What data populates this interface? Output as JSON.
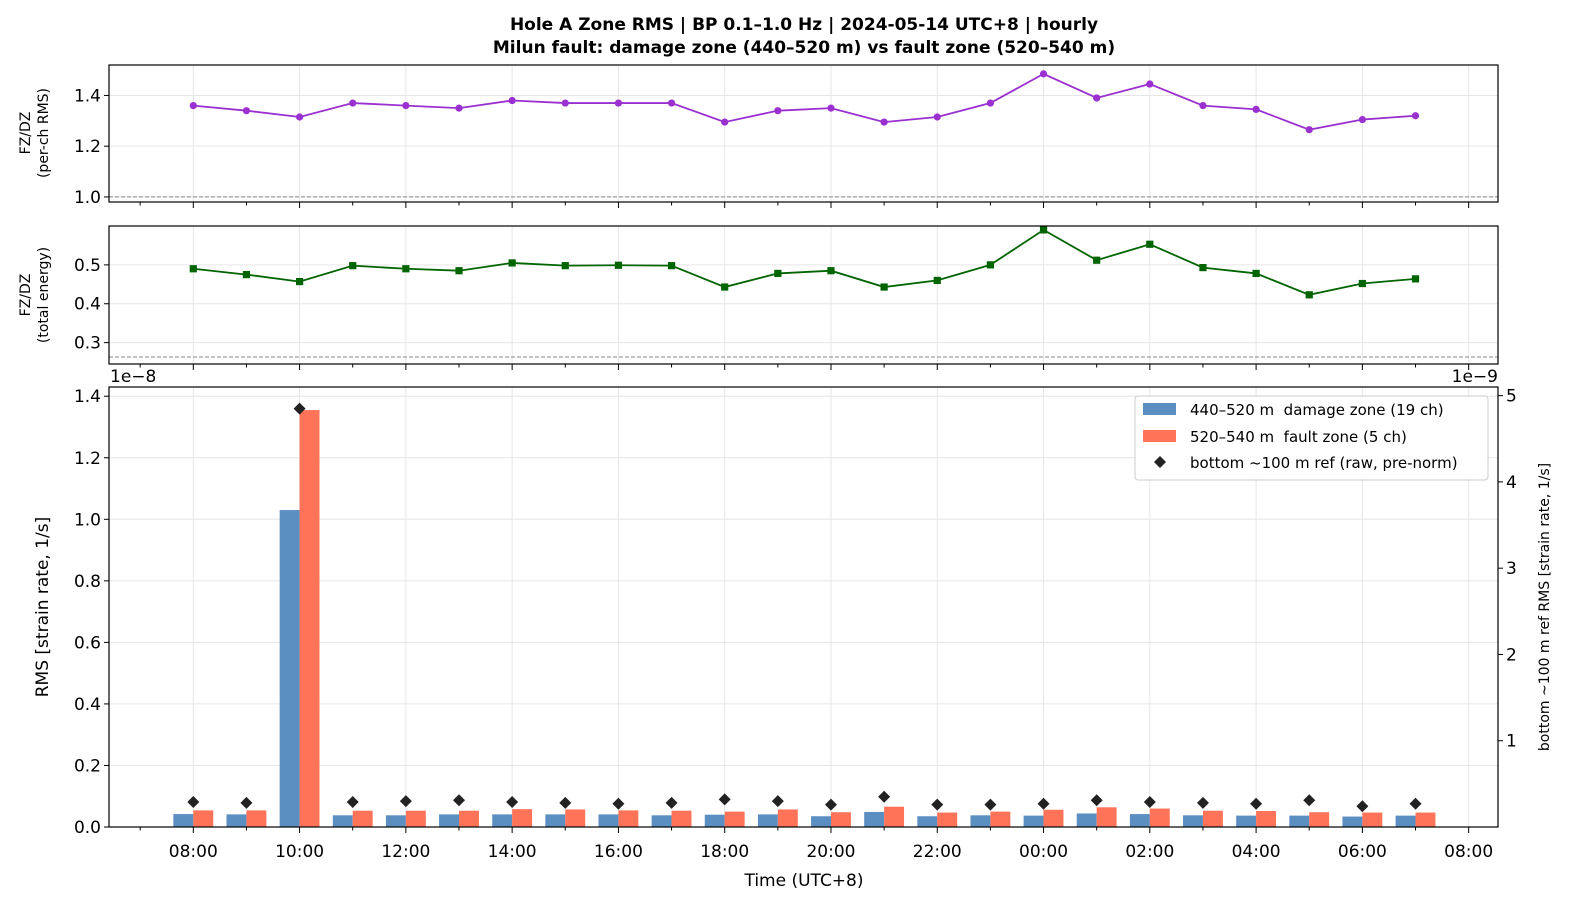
{
  "title_line1": "Hole A Zone RMS  |  BP 0.1–1.0 Hz  |  2024-05-14 UTC+8  |  hourly",
  "title_line2": "Milun fault: damage zone (440–520 m) vs fault zone (520–540 m)",
  "colors": {
    "ratio_rms": "#9b30d0",
    "ratio_energy": "#006400",
    "damage_zone": "#5b8fc2",
    "fault_zone": "#ff7358",
    "bottom_ref": "#222222",
    "refline": "#888888"
  },
  "chart_data": [
    {
      "type": "line",
      "panel": "top",
      "ylabel_line1": "FZ/DZ",
      "ylabel_line2": "(per-ch RMS)",
      "ylim": [
        0.98,
        1.52
      ],
      "yticks": [
        "1.0",
        "1.2",
        "1.4"
      ],
      "yticks_values": [
        1.0,
        1.2,
        1.4
      ],
      "reference_line": 1.0,
      "grid": true,
      "marker": "circle",
      "x_hours": [
        0,
        1,
        2,
        3,
        4,
        5,
        6,
        7,
        8,
        9,
        10,
        11,
        12,
        13,
        14,
        15,
        16,
        17,
        18,
        19,
        20,
        21,
        22,
        23
      ],
      "values": [
        1.36,
        1.34,
        1.315,
        1.37,
        1.36,
        1.35,
        1.38,
        1.37,
        1.37,
        1.37,
        1.295,
        1.34,
        1.35,
        1.295,
        1.315,
        1.37,
        1.485,
        1.39,
        1.445,
        1.36,
        1.345,
        1.265,
        1.305,
        1.32
      ]
    },
    {
      "type": "line",
      "panel": "middle",
      "ylabel_line1": "FZ/DZ",
      "ylabel_line2": "(total energy)",
      "ylim": [
        0.245,
        0.6
      ],
      "yticks": [
        "0.3",
        "0.4",
        "0.5"
      ],
      "yticks_values": [
        0.3,
        0.4,
        0.5
      ],
      "reference_line": 0.263,
      "grid": true,
      "marker": "square",
      "x_hours": [
        0,
        1,
        2,
        3,
        4,
        5,
        6,
        7,
        8,
        9,
        10,
        11,
        12,
        13,
        14,
        15,
        16,
        17,
        18,
        19,
        20,
        21,
        22,
        23
      ],
      "values": [
        0.49,
        0.475,
        0.457,
        0.498,
        0.49,
        0.485,
        0.505,
        0.498,
        0.499,
        0.498,
        0.443,
        0.478,
        0.485,
        0.443,
        0.46,
        0.5,
        0.59,
        0.512,
        0.553,
        0.493,
        0.478,
        0.423,
        0.452,
        0.464
      ]
    },
    {
      "type": "bar",
      "panel": "bottom",
      "ylabel": "RMS  [strain rate, 1/s]",
      "ylabel_right": "bottom ~100 m ref RMS  [strain rate, 1/s]",
      "xlabel": "Time (UTC+8)",
      "offset_left": "1e−8",
      "offset_right": "1e−9",
      "ylim": [
        0,
        1.43
      ],
      "yticks": [
        "0.0",
        "0.2",
        "0.4",
        "0.6",
        "0.8",
        "1.0",
        "1.2",
        "1.4"
      ],
      "yticks_values": [
        0,
        0.2,
        0.4,
        0.6,
        0.8,
        1.0,
        1.2,
        1.4
      ],
      "ylim_right": [
        0,
        5.1
      ],
      "yticks_right": [
        "1",
        "2",
        "3",
        "4",
        "5"
      ],
      "yticks_right_values": [
        1,
        2,
        3,
        4,
        5
      ],
      "xlim_hours": [
        -1.0,
        24.75
      ],
      "xticks_labels": [
        "08:00",
        "10:00",
        "12:00",
        "14:00",
        "16:00",
        "18:00",
        "20:00",
        "22:00",
        "00:00",
        "02:00",
        "04:00",
        "06:00",
        "08:00"
      ],
      "xticks_hours": [
        0,
        2,
        4,
        6,
        8,
        10,
        12,
        14,
        16,
        18,
        20,
        22,
        24
      ],
      "grid": true,
      "legend_position": "top-right",
      "categories_hours": [
        0,
        1,
        2,
        3,
        4,
        5,
        6,
        7,
        8,
        9,
        10,
        11,
        12,
        13,
        14,
        15,
        16,
        17,
        18,
        19,
        20,
        21,
        22,
        23
      ],
      "series": [
        {
          "name": "440–520 m  damage zone (19 ch)",
          "axis": "left",
          "values": [
            0.042,
            0.041,
            1.03,
            0.038,
            0.038,
            0.041,
            0.041,
            0.041,
            0.041,
            0.038,
            0.04,
            0.041,
            0.035,
            0.049,
            0.035,
            0.038,
            0.037,
            0.044,
            0.042,
            0.038,
            0.037,
            0.037,
            0.034,
            0.037
          ]
        },
        {
          "name": "520–540 m  fault zone (5 ch)",
          "axis": "left",
          "values": [
            0.054,
            0.054,
            1.355,
            0.053,
            0.053,
            0.053,
            0.058,
            0.057,
            0.054,
            0.053,
            0.05,
            0.057,
            0.048,
            0.066,
            0.047,
            0.05,
            0.056,
            0.064,
            0.06,
            0.053,
            0.052,
            0.048,
            0.047,
            0.047
          ]
        },
        {
          "name": "bottom ~100 m ref (raw, pre-norm)",
          "axis": "right",
          "marker": "diamond",
          "values": [
            0.29,
            0.28,
            4.85,
            0.29,
            0.3,
            0.31,
            0.29,
            0.28,
            0.27,
            0.28,
            0.32,
            0.3,
            0.26,
            0.35,
            0.26,
            0.26,
            0.27,
            0.31,
            0.29,
            0.28,
            0.27,
            0.31,
            0.24,
            0.27
          ]
        }
      ]
    }
  ]
}
